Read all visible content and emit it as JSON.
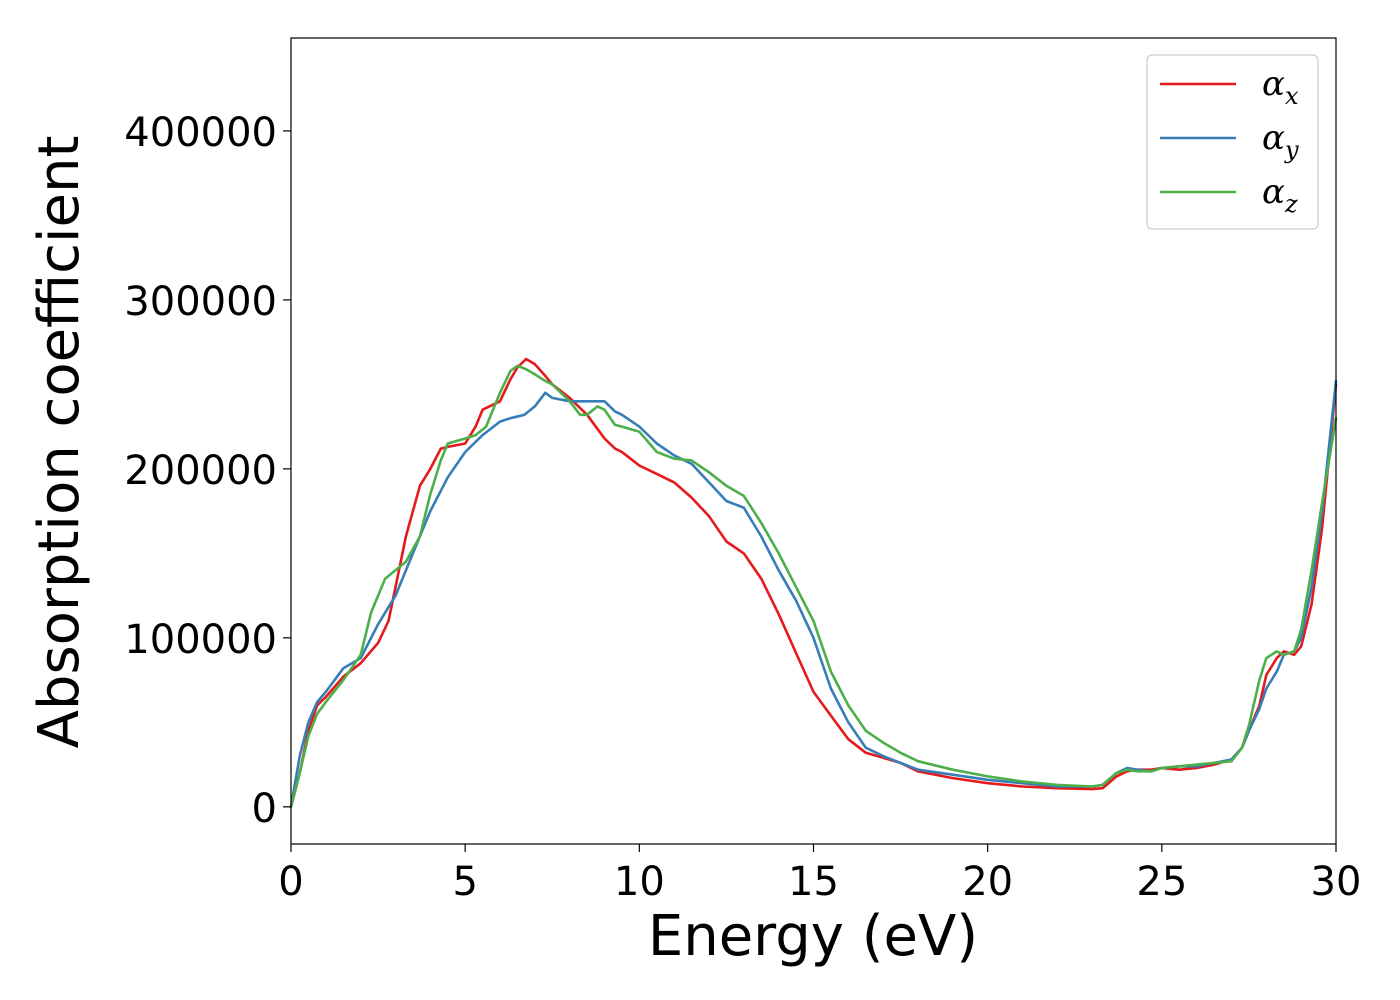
{
  "chart_data": {
    "type": "line",
    "title": "",
    "xlabel": "Energy (eV)",
    "ylabel": "Absorption coefficient",
    "xlim": [
      0,
      30
    ],
    "ylim": [
      -22000,
      455000
    ],
    "xticks": [
      0,
      5,
      10,
      15,
      20,
      25,
      30
    ],
    "yticks": [
      0,
      100000,
      200000,
      300000,
      400000
    ],
    "grid": false,
    "legend_position": "top-right",
    "series": [
      {
        "name": "α",
        "subscript": "x",
        "color": "#e41a1c",
        "x": [
          0,
          0.25,
          0.5,
          0.75,
          1,
          1.5,
          2,
          2.5,
          2.8,
          3,
          3.3,
          3.7,
          4,
          4.3,
          4.5,
          5,
          5.3,
          5.5,
          5.8,
          6,
          6.3,
          6.5,
          6.75,
          7,
          7.3,
          7.5,
          8,
          8.5,
          9,
          9.3,
          9.5,
          10,
          10.5,
          11,
          11.5,
          12,
          12.5,
          13,
          13.5,
          14,
          14.5,
          15,
          15.5,
          16,
          16.5,
          17,
          17.5,
          18,
          19,
          20,
          21,
          22,
          23,
          23.3,
          23.7,
          24,
          24.3,
          24.7,
          25,
          25.5,
          26,
          26.5,
          27,
          27.3,
          27.5,
          27.8,
          28,
          28.3,
          28.5,
          28.8,
          29,
          29.3,
          29.6,
          30
        ],
        "y": [
          0,
          20000,
          45000,
          60000,
          65000,
          77000,
          85000,
          97000,
          110000,
          130000,
          160000,
          190000,
          200000,
          212000,
          213000,
          215000,
          225000,
          235000,
          238000,
          240000,
          253000,
          260000,
          265000,
          262000,
          255000,
          250000,
          242000,
          232000,
          218000,
          212000,
          210000,
          202000,
          197000,
          192000,
          183000,
          172000,
          157000,
          150000,
          135000,
          114000,
          91000,
          68000,
          54000,
          40000,
          32000,
          29000,
          26000,
          21000,
          17000,
          14000,
          12000,
          11000,
          10500,
          11000,
          18000,
          21000,
          22000,
          22000,
          23000,
          22000,
          23000,
          25000,
          28000,
          35000,
          45000,
          60000,
          78000,
          88000,
          92000,
          90000,
          95000,
          120000,
          165000,
          250000
        ]
      },
      {
        "name": "α",
        "subscript": "y",
        "color": "#377eb8",
        "x": [
          0,
          0.25,
          0.5,
          0.75,
          1,
          1.5,
          2,
          2.5,
          3,
          3.5,
          4,
          4.5,
          5,
          5.5,
          6,
          6.3,
          6.7,
          7,
          7.3,
          7.5,
          8,
          8.5,
          9,
          9.3,
          9.5,
          10,
          10.5,
          11,
          11.5,
          12,
          12.5,
          13,
          13.5,
          14,
          14.5,
          15,
          15.5,
          16,
          16.5,
          17,
          17.5,
          18,
          19,
          20,
          21,
          22,
          23,
          23.3,
          23.7,
          24,
          24.3,
          24.7,
          25,
          25.5,
          26,
          26.5,
          27,
          27.3,
          27.5,
          27.8,
          28,
          28.3,
          28.5,
          28.8,
          29,
          29.3,
          29.6,
          30
        ],
        "y": [
          0,
          30000,
          50000,
          62000,
          68000,
          82000,
          88000,
          108000,
          125000,
          150000,
          175000,
          195000,
          210000,
          220000,
          228000,
          230000,
          232000,
          237000,
          245000,
          242000,
          240000,
          240000,
          240000,
          234000,
          232000,
          225000,
          215000,
          208000,
          203000,
          192000,
          181000,
          177000,
          160000,
          140000,
          122000,
          100000,
          70000,
          50000,
          35000,
          30000,
          26000,
          22000,
          19000,
          16000,
          14000,
          12000,
          12000,
          13000,
          20000,
          23000,
          22000,
          21000,
          23000,
          24000,
          24000,
          26000,
          28000,
          35000,
          45000,
          58000,
          70000,
          80000,
          90000,
          92000,
          100000,
          130000,
          175000,
          252000
        ]
      },
      {
        "name": "α",
        "subscript": "z",
        "color": "#4daf4a",
        "x": [
          0,
          0.25,
          0.5,
          0.75,
          1,
          1.5,
          2,
          2.3,
          2.7,
          3,
          3.3,
          3.7,
          4,
          4.3,
          4.5,
          5,
          5.3,
          5.6,
          6,
          6.3,
          6.5,
          6.75,
          7,
          7.3,
          7.5,
          8,
          8.3,
          8.5,
          8.8,
          9,
          9.3,
          9.5,
          10,
          10.5,
          11,
          11.5,
          12,
          12.5,
          13,
          13.5,
          14,
          14.5,
          15,
          15.5,
          16,
          16.5,
          17,
          17.5,
          18,
          19,
          20,
          21,
          22,
          23,
          23.3,
          23.7,
          24,
          24.3,
          24.7,
          25,
          25.5,
          26,
          26.5,
          27,
          27.3,
          27.5,
          27.8,
          28,
          28.3,
          28.5,
          28.8,
          29,
          29.3,
          29.6,
          30
        ],
        "y": [
          0,
          20000,
          42000,
          55000,
          62000,
          75000,
          90000,
          115000,
          135000,
          140000,
          145000,
          160000,
          185000,
          205000,
          215000,
          218000,
          220000,
          225000,
          245000,
          258000,
          261000,
          259000,
          256000,
          252000,
          250000,
          240000,
          232000,
          232000,
          237000,
          235000,
          226000,
          225000,
          222000,
          210000,
          206000,
          205000,
          198000,
          190000,
          184000,
          168000,
          150000,
          130000,
          110000,
          80000,
          60000,
          45000,
          38000,
          32000,
          27000,
          22000,
          18000,
          15000,
          13000,
          12000,
          13000,
          20000,
          22000,
          21000,
          21000,
          23000,
          24000,
          25000,
          26000,
          27000,
          35000,
          48000,
          75000,
          88000,
          92000,
          90000,
          92000,
          105000,
          140000,
          180000,
          230000
        ]
      }
    ]
  }
}
